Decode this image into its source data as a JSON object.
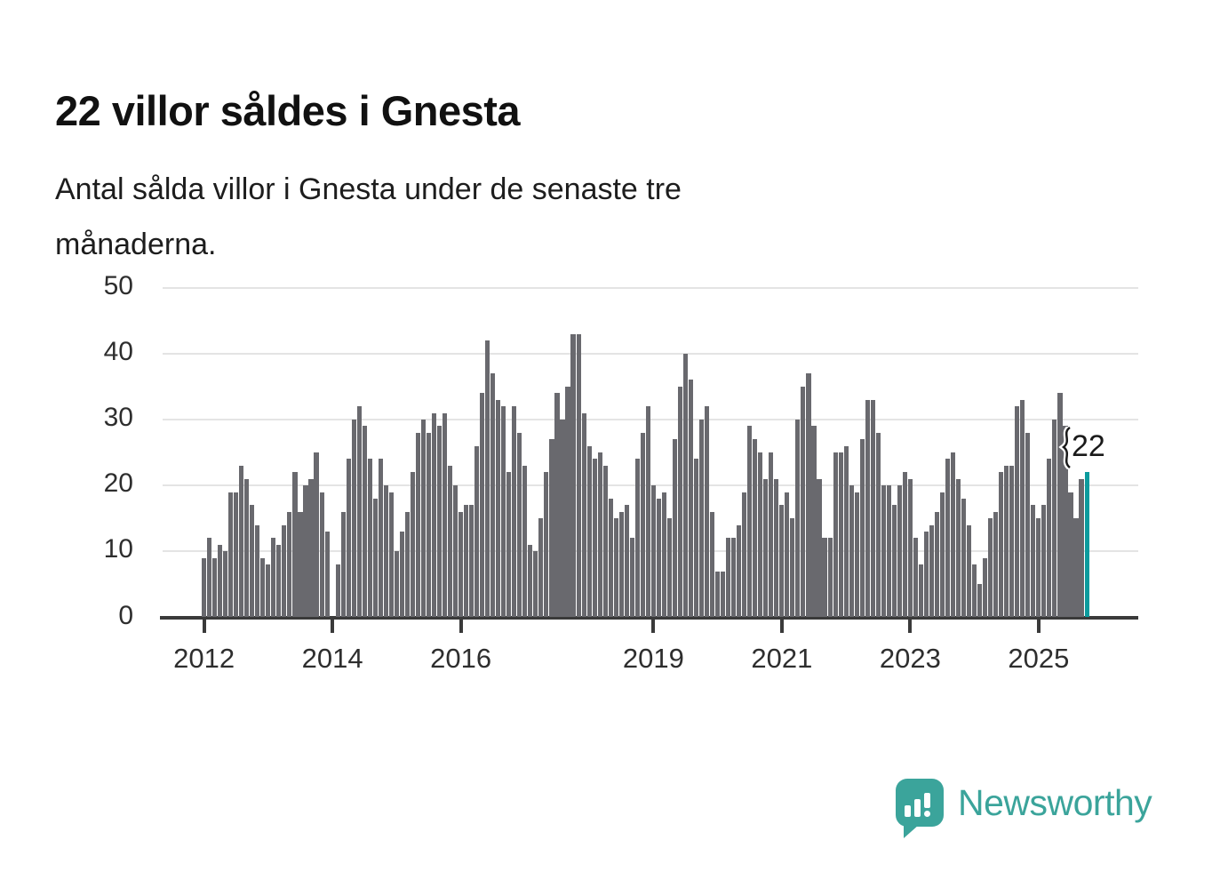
{
  "header": {
    "title": "22 villor såldes i Gnesta",
    "subtitle_lines": [
      "Antal sålda villor i Gnesta under de senaste tre",
      "månaderna."
    ]
  },
  "chart_data": {
    "type": "bar",
    "title": "22 villor såldes i Gnesta",
    "xlabel": "",
    "ylabel": "",
    "x_start": "2012-01",
    "x_end": "2025-10",
    "x_frequency": "monthly",
    "ylim": [
      0,
      50
    ],
    "yticks": [
      0,
      10,
      20,
      30,
      40,
      50
    ],
    "xticks": [
      "2012",
      "2014",
      "2016",
      "2019",
      "2021",
      "2023",
      "2025"
    ],
    "grid": "horizontal",
    "legend": "none",
    "highlight_last_bar": true,
    "values": [
      9,
      12,
      9,
      11,
      10,
      19,
      19,
      23,
      21,
      17,
      14,
      9,
      8,
      12,
      11,
      14,
      16,
      22,
      16,
      20,
      21,
      25,
      19,
      13,
      null,
      8,
      16,
      24,
      30,
      32,
      29,
      24,
      18,
      24,
      20,
      19,
      10,
      13,
      16,
      22,
      28,
      30,
      28,
      31,
      29,
      31,
      23,
      20,
      16,
      17,
      17,
      26,
      34,
      42,
      37,
      33,
      32,
      22,
      32,
      28,
      23,
      11,
      10,
      15,
      22,
      27,
      34,
      30,
      35,
      43,
      43,
      31,
      26,
      24,
      25,
      23,
      18,
      15,
      16,
      17,
      12,
      24,
      28,
      32,
      20,
      18,
      19,
      15,
      27,
      35,
      40,
      36,
      24,
      30,
      32,
      16,
      7,
      7,
      12,
      12,
      14,
      19,
      29,
      27,
      25,
      21,
      25,
      21,
      17,
      19,
      15,
      30,
      35,
      37,
      29,
      21,
      12,
      12,
      25,
      25,
      26,
      20,
      19,
      27,
      33,
      33,
      28,
      20,
      20,
      17,
      20,
      22,
      21,
      12,
      8,
      13,
      14,
      16,
      19,
      24,
      25,
      21,
      18,
      14,
      8,
      5,
      9,
      15,
      16,
      22,
      23,
      23,
      32,
      33,
      28,
      17,
      15,
      17,
      24,
      30,
      34,
      29,
      19,
      15,
      21,
      22
    ]
  },
  "annotation": {
    "label": "22"
  },
  "colors": {
    "bar": "#69696e",
    "accent": "#0c9b9d",
    "grid": "#e4e4e4",
    "axis": "#3a3a3a",
    "logo": "#3ba49b"
  },
  "footer": {
    "brand": "Newsworthy"
  }
}
